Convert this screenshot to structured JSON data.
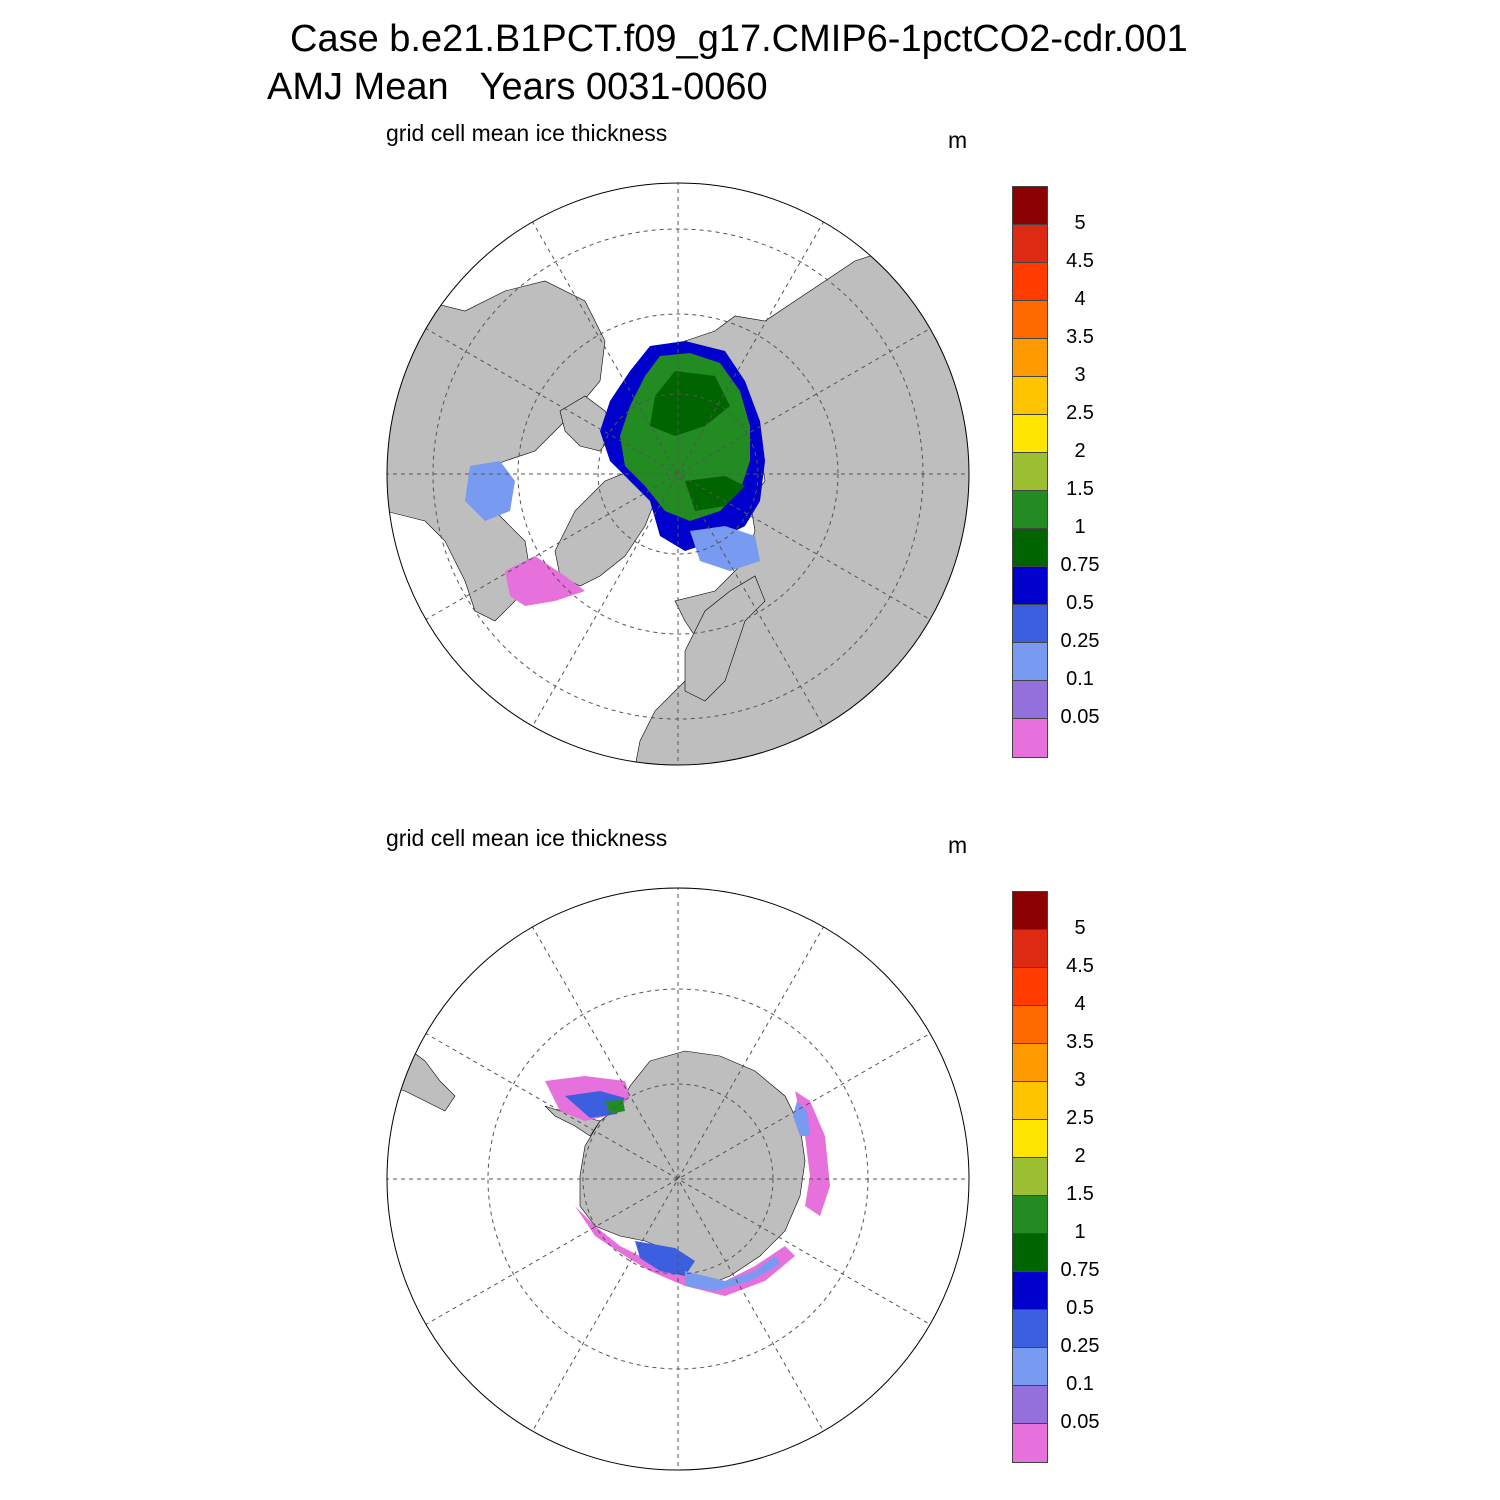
{
  "title": {
    "line1": "Case b.e21.B1PCT.f09_g17.CMIP6-1pctCO2-cdr.001",
    "line2": "AMJ Mean   Years 0031-0060"
  },
  "panels": [
    {
      "id": "arctic",
      "subtitle": "grid cell mean ice thickness",
      "units": "m"
    },
    {
      "id": "antarctic",
      "subtitle": "grid cell mean ice thickness",
      "units": "m"
    }
  ],
  "colorbar": {
    "levels": [
      "5",
      "4.5",
      "4",
      "3.5",
      "3",
      "2.5",
      "2",
      "1.5",
      "1",
      "0.75",
      "0.5",
      "0.25",
      "0.1",
      "0.05"
    ],
    "colors": [
      "#8b0000",
      "#dd2a13",
      "#ff3b00",
      "#ff6a00",
      "#ff9a00",
      "#ffc400",
      "#ffe500",
      "#9cbe31",
      "#228b22",
      "#006400",
      "#0000cd",
      "#3c5fe0",
      "#789af0",
      "#9370db",
      "#e670dc"
    ]
  },
  "map_colors": {
    "land": "#bebebe",
    "ocean": "#ffffff",
    "graticule": "#555555"
  }
}
